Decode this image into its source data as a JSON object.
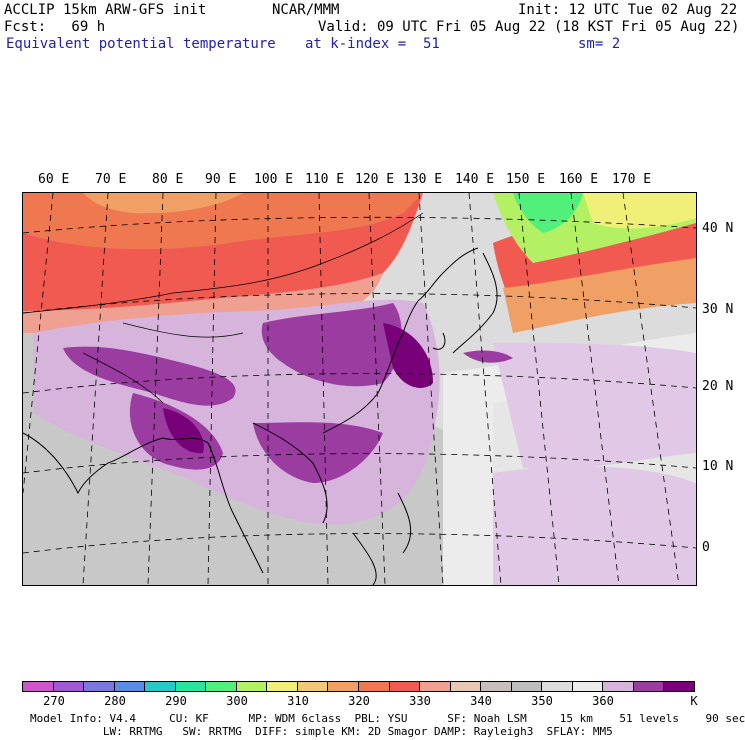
{
  "header": {
    "left1": "ACCLIP 15km ARW-GFS init",
    "center1": "NCAR/MMM",
    "right1": "Init: 12 UTC Tue 02 Aug 22",
    "left2": "Fcst:   69 h",
    "right2": "Valid: 09 UTC Fri 05 Aug 22 (18 KST Fri 05 Aug 22)",
    "field": "Equivalent potential temperature",
    "level": "at k-index =  51",
    "smooth": "sm= 2"
  },
  "map": {
    "lon_labels": [
      "60 E",
      "70 E",
      "80 E",
      "90 E",
      "100 E",
      "110 E",
      "120 E",
      "130 E",
      "140 E",
      "150 E",
      "160 E",
      "170 E"
    ],
    "lat_labels": [
      "40 N",
      "30 N",
      "20 N",
      "10 N",
      "0"
    ]
  },
  "colorbar": {
    "colors": [
      "#cc55cc",
      "#a05ad2",
      "#7a78dc",
      "#5a8ce6",
      "#28c8c8",
      "#28e6a0",
      "#50f07a",
      "#b4f064",
      "#f0f078",
      "#f0c878",
      "#f0a064",
      "#f07850",
      "#f05a50",
      "#f0a090",
      "#e6c8b4",
      "#c8bebe",
      "#bebebe",
      "#dcdcdc",
      "#ececec",
      "#d6b4dc",
      "#9a3ca0",
      "#780078"
    ],
    "tick_values": [
      "270",
      "280",
      "290",
      "300",
      "310",
      "320",
      "330",
      "340",
      "350",
      "360"
    ],
    "unit": "K"
  },
  "footer": {
    "line1": "Model Info: V4.4     CU: KF      MP: WDM 6class  PBL: YSU      SF: Noah LSM     15 km    51 levels    90 sec",
    "line2": "           LW: RRTMG   SW: RRTMG  DIFF: simple KM: 2D Smagor DAMP: Rayleigh3  SFLAY: MM5"
  }
}
